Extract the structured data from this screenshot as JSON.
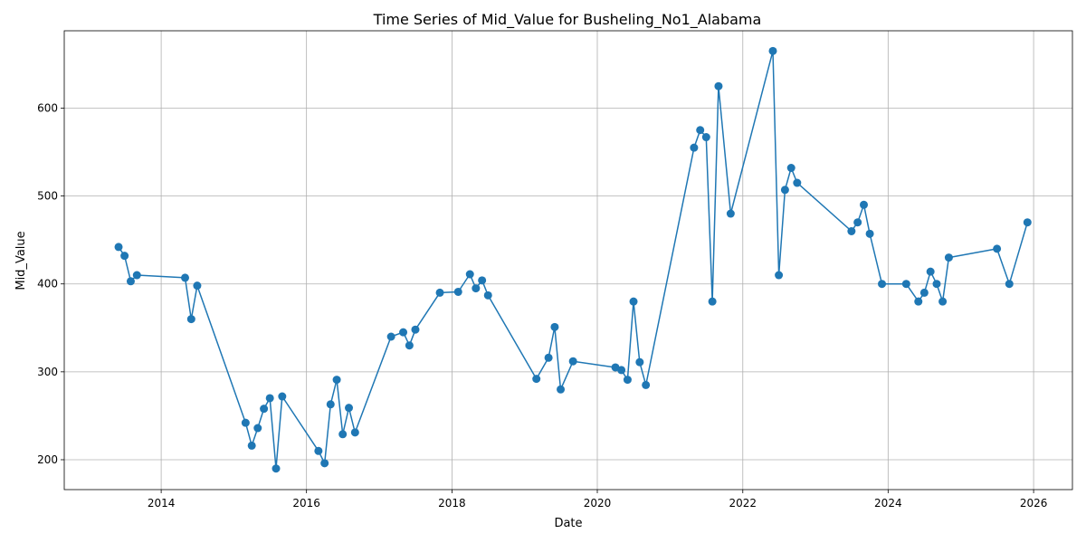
{
  "chart_data": {
    "type": "line",
    "title": "Time Series of Mid_Value for Busheling_No1_Alabama",
    "xlabel": "Date",
    "ylabel": "Mid_Value",
    "x_ticks": [
      "2014",
      "2016",
      "2018",
      "2020",
      "2022",
      "2024",
      "2026"
    ],
    "y_ticks": [
      200,
      300,
      400,
      500,
      600
    ],
    "xlim": [
      "2012-09-01",
      "2026-07-15"
    ],
    "ylim": [
      166,
      688
    ],
    "grid": true,
    "marker": "circle",
    "color": "#1f77b4",
    "series": [
      {
        "x": [
          "2013-06-01",
          "2013-07-01",
          "2013-08-01",
          "2013-09-01",
          "2014-05-01",
          "2014-06-01",
          "2014-07-01",
          "2015-03-01",
          "2015-04-01",
          "2015-05-01",
          "2015-06-01",
          "2015-07-01",
          "2015-08-01",
          "2015-09-01",
          "2016-03-01",
          "2016-04-01",
          "2016-05-01",
          "2016-06-01",
          "2016-07-01",
          "2016-08-01",
          "2016-09-01",
          "2017-03-01",
          "2017-05-01",
          "2017-06-01",
          "2017-07-01",
          "2017-11-01",
          "2018-02-01",
          "2018-04-01",
          "2018-05-01",
          "2018-06-01",
          "2018-07-01",
          "2019-03-01",
          "2019-05-01",
          "2019-06-01",
          "2019-07-01",
          "2019-09-01",
          "2020-04-01",
          "2020-05-01",
          "2020-06-01",
          "2020-07-01",
          "2020-08-01",
          "2020-09-01",
          "2021-05-01",
          "2021-06-01",
          "2021-07-01",
          "2021-08-01",
          "2021-09-01",
          "2021-11-01",
          "2022-06-01",
          "2022-07-01",
          "2022-08-01",
          "2022-09-01",
          "2022-10-01",
          "2023-07-01",
          "2023-08-01",
          "2023-09-01",
          "2023-10-01",
          "2023-12-01",
          "2024-04-01",
          "2024-06-01",
          "2024-07-01",
          "2024-08-01",
          "2024-09-01",
          "2024-10-01",
          "2024-11-01",
          "2025-07-01",
          "2025-09-01",
          "2025-12-01"
        ],
        "values": [
          442,
          432,
          403,
          410,
          407,
          360,
          398,
          242,
          216,
          236,
          258,
          270,
          190,
          272,
          210,
          196,
          263,
          291,
          229,
          259,
          231,
          340,
          345,
          330,
          348,
          390,
          391,
          411,
          395,
          404,
          387,
          292,
          316,
          351,
          280,
          312,
          305,
          302,
          291,
          380,
          311,
          285,
          555,
          575,
          567,
          380,
          625,
          480,
          665,
          410,
          507,
          532,
          515,
          460,
          470,
          490,
          457,
          400,
          400,
          380,
          390,
          414,
          400,
          380,
          430,
          440,
          400,
          470
        ]
      }
    ]
  }
}
